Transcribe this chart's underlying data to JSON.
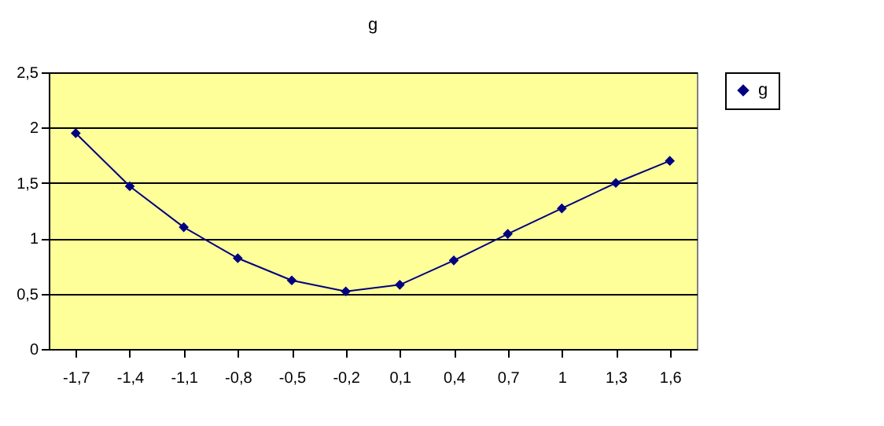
{
  "chart_data": {
    "type": "line",
    "title": "g",
    "categories": [
      "-1,7",
      "-1,4",
      "-1,1",
      "-0,8",
      "-0,5",
      "-0,2",
      "0,1",
      "0,4",
      "0,7",
      "1",
      "1,3",
      "1,6"
    ],
    "series": [
      {
        "name": "g",
        "color": "#000080",
        "values": [
          1.95,
          1.47,
          1.1,
          0.82,
          0.62,
          0.52,
          0.58,
          0.8,
          1.04,
          1.27,
          1.5,
          1.7
        ]
      }
    ],
    "ylim": [
      0,
      2.5
    ],
    "yticks": [
      {
        "value": 0,
        "label": "0"
      },
      {
        "value": 0.5,
        "label": "0,5"
      },
      {
        "value": 1,
        "label": "1"
      },
      {
        "value": 1.5,
        "label": "1,5"
      },
      {
        "value": 2,
        "label": "2"
      },
      {
        "value": 2.5,
        "label": "2,5"
      }
    ],
    "grid": "y",
    "legend": "right",
    "marker": "diamond",
    "line_style": "solid"
  }
}
